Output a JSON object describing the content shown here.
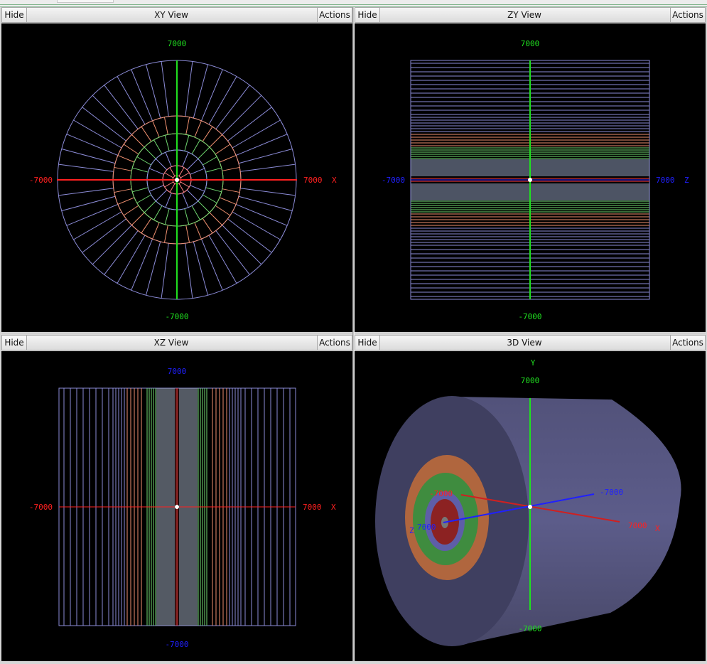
{
  "panels": {
    "xy": {
      "hide": "Hide",
      "title": "XY View",
      "actions": "Actions"
    },
    "zy": {
      "hide": "Hide",
      "title": "ZY View",
      "actions": "Actions"
    },
    "xz": {
      "hide": "Hide",
      "title": "XZ View",
      "actions": "Actions"
    },
    "view3d": {
      "hide": "Hide",
      "title": "3D View",
      "actions": "Actions"
    }
  },
  "axis_labels": {
    "pos": "7000",
    "neg": "-7000",
    "x": "X",
    "y": "Y",
    "z": "Z"
  },
  "colors": {
    "x_axis": "#ff2020",
    "y_axis": "#20e020",
    "z_axis": "#2020ff",
    "outer_layer": "#8c8cd8",
    "orange_layer": "#f09070",
    "green_layer": "#70d870",
    "inner_layer": "#9090e8",
    "red_layer": "#ff8080"
  }
}
